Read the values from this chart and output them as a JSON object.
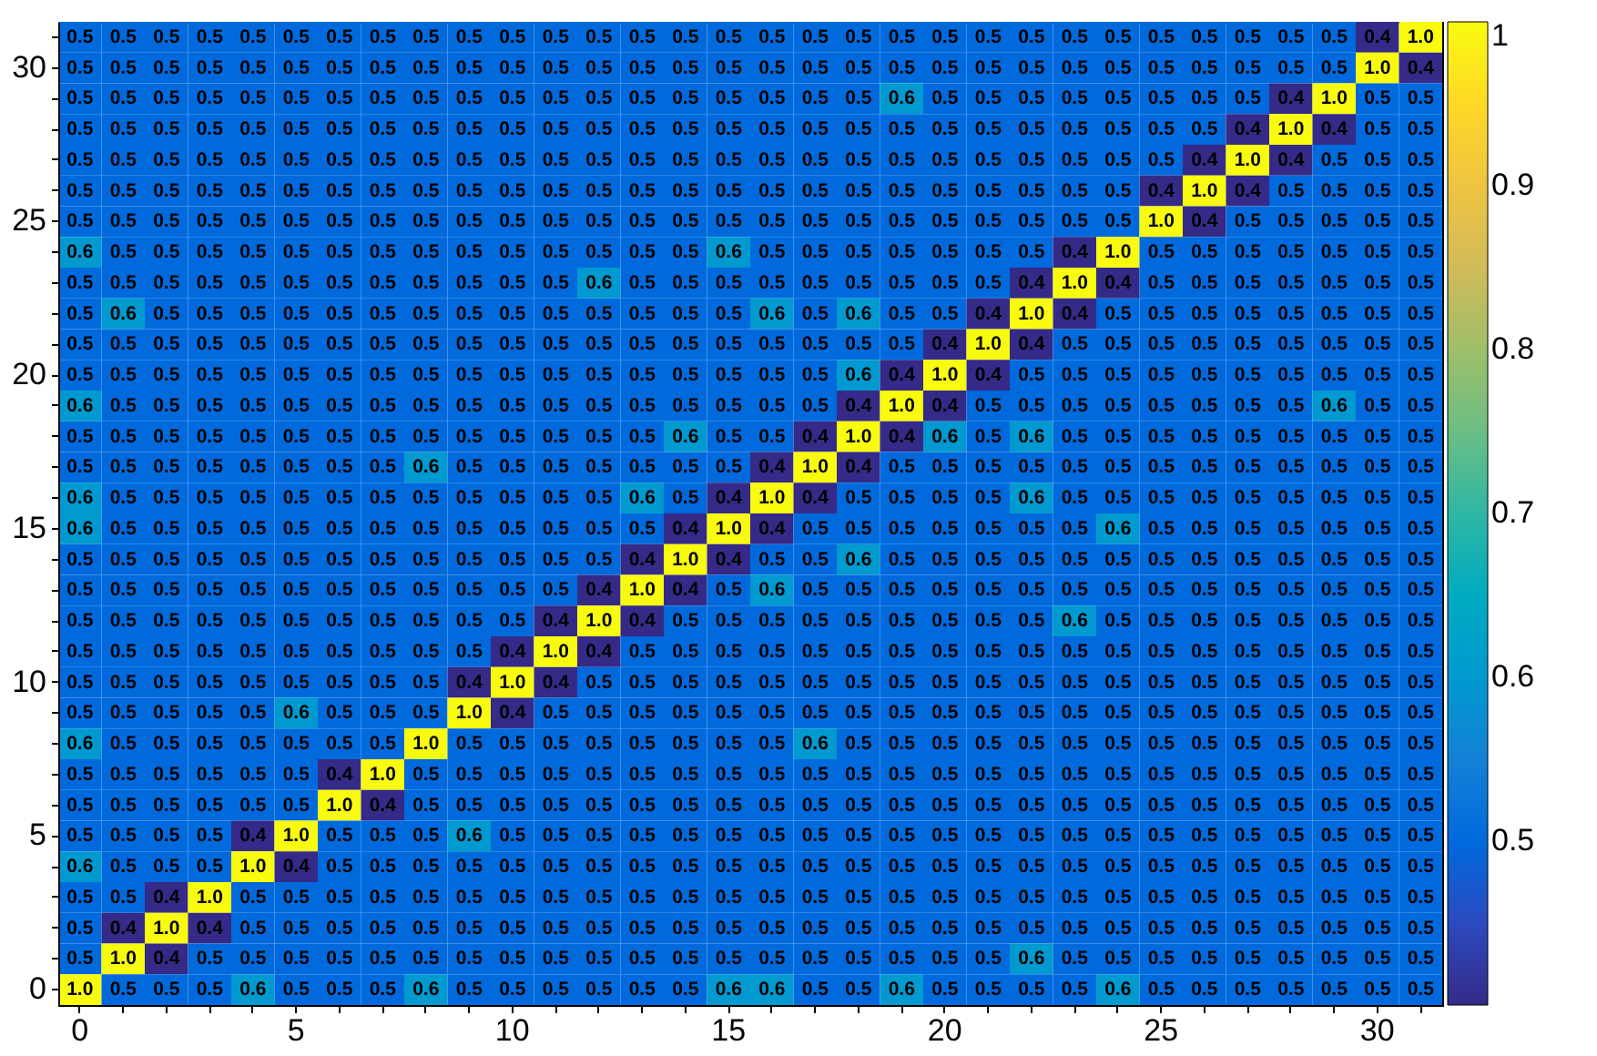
{
  "chart_data": {
    "type": "heatmap",
    "categories": [
      "0",
      null,
      null,
      null,
      null,
      "5",
      null,
      null,
      null,
      null,
      "10",
      null,
      null,
      null,
      null,
      "15",
      null,
      null,
      null,
      null,
      "20",
      null,
      null,
      null,
      null,
      "25",
      null,
      null,
      null,
      null,
      "30",
      null
    ],
    "y_categories": [
      null,
      "30",
      null,
      null,
      null,
      null,
      "25",
      null,
      null,
      null,
      null,
      "20",
      null,
      null,
      null,
      null,
      "15",
      null,
      null,
      null,
      null,
      "10",
      null,
      null,
      null,
      null,
      "5",
      null,
      null,
      null,
      null,
      "0"
    ],
    "cells": [
      [
        0.5,
        0.5,
        0.5,
        0.5,
        0.5,
        0.5,
        0.5,
        0.5,
        0.5,
        0.5,
        0.5,
        0.5,
        0.5,
        0.5,
        0.5,
        0.5,
        0.5,
        0.5,
        0.5,
        0.5,
        0.5,
        0.5,
        0.5,
        0.5,
        0.5,
        0.5,
        0.5,
        0.5,
        0.5,
        0.5,
        0.4,
        1.0
      ],
      [
        0.5,
        0.5,
        0.5,
        0.5,
        0.5,
        0.5,
        0.5,
        0.5,
        0.5,
        0.5,
        0.5,
        0.5,
        0.5,
        0.5,
        0.5,
        0.5,
        0.5,
        0.5,
        0.5,
        0.5,
        0.5,
        0.5,
        0.5,
        0.5,
        0.5,
        0.5,
        0.5,
        0.5,
        0.5,
        0.5,
        1.0,
        0.4
      ],
      [
        0.5,
        0.5,
        0.5,
        0.5,
        0.5,
        0.5,
        0.5,
        0.5,
        0.5,
        0.5,
        0.5,
        0.5,
        0.5,
        0.5,
        0.5,
        0.5,
        0.5,
        0.5,
        0.5,
        0.6,
        0.5,
        0.5,
        0.5,
        0.5,
        0.5,
        0.5,
        0.5,
        0.5,
        0.4,
        1.0,
        0.5,
        0.5
      ],
      [
        0.5,
        0.5,
        0.5,
        0.5,
        0.5,
        0.5,
        0.5,
        0.5,
        0.5,
        0.5,
        0.5,
        0.5,
        0.5,
        0.5,
        0.5,
        0.5,
        0.5,
        0.5,
        0.5,
        0.5,
        0.5,
        0.5,
        0.5,
        0.5,
        0.5,
        0.5,
        0.5,
        0.4,
        1.0,
        0.4,
        0.5,
        0.5
      ],
      [
        0.5,
        0.5,
        0.5,
        0.5,
        0.5,
        0.5,
        0.5,
        0.5,
        0.5,
        0.5,
        0.5,
        0.5,
        0.5,
        0.5,
        0.5,
        0.5,
        0.5,
        0.5,
        0.5,
        0.5,
        0.5,
        0.5,
        0.5,
        0.5,
        0.5,
        0.5,
        0.4,
        1.0,
        0.4,
        0.5,
        0.5,
        0.5
      ],
      [
        0.5,
        0.5,
        0.5,
        0.5,
        0.5,
        0.5,
        0.5,
        0.5,
        0.5,
        0.5,
        0.5,
        0.5,
        0.5,
        0.5,
        0.5,
        0.5,
        0.5,
        0.5,
        0.5,
        0.5,
        0.5,
        0.5,
        0.5,
        0.5,
        0.5,
        0.4,
        1.0,
        0.4,
        0.5,
        0.5,
        0.5,
        0.5
      ],
      [
        0.5,
        0.5,
        0.5,
        0.5,
        0.5,
        0.5,
        0.5,
        0.5,
        0.5,
        0.5,
        0.5,
        0.5,
        0.5,
        0.5,
        0.5,
        0.5,
        0.5,
        0.5,
        0.5,
        0.5,
        0.5,
        0.5,
        0.5,
        0.5,
        0.5,
        1.0,
        0.4,
        0.5,
        0.5,
        0.5,
        0.5,
        0.5
      ],
      [
        0.6,
        0.5,
        0.5,
        0.5,
        0.5,
        0.5,
        0.5,
        0.5,
        0.5,
        0.5,
        0.5,
        0.5,
        0.5,
        0.5,
        0.5,
        0.6,
        0.5,
        0.5,
        0.5,
        0.5,
        0.5,
        0.5,
        0.5,
        0.4,
        1.0,
        0.5,
        0.5,
        0.5,
        0.5,
        0.5,
        0.5,
        0.5
      ],
      [
        0.5,
        0.5,
        0.5,
        0.5,
        0.5,
        0.5,
        0.5,
        0.5,
        0.5,
        0.5,
        0.5,
        0.5,
        0.6,
        0.5,
        0.5,
        0.5,
        0.5,
        0.5,
        0.5,
        0.5,
        0.5,
        0.5,
        0.4,
        1.0,
        0.4,
        0.5,
        0.5,
        0.5,
        0.5,
        0.5,
        0.5,
        0.5
      ],
      [
        0.5,
        0.6,
        0.5,
        0.5,
        0.5,
        0.5,
        0.5,
        0.5,
        0.5,
        0.5,
        0.5,
        0.5,
        0.5,
        0.5,
        0.5,
        0.5,
        0.6,
        0.5,
        0.6,
        0.5,
        0.5,
        0.4,
        1.0,
        0.4,
        0.5,
        0.5,
        0.5,
        0.5,
        0.5,
        0.5,
        0.5,
        0.5
      ],
      [
        0.5,
        0.5,
        0.5,
        0.5,
        0.5,
        0.5,
        0.5,
        0.5,
        0.5,
        0.5,
        0.5,
        0.5,
        0.5,
        0.5,
        0.5,
        0.5,
        0.5,
        0.5,
        0.5,
        0.5,
        0.4,
        1.0,
        0.4,
        0.5,
        0.5,
        0.5,
        0.5,
        0.5,
        0.5,
        0.5,
        0.5,
        0.5
      ],
      [
        0.5,
        0.5,
        0.5,
        0.5,
        0.5,
        0.5,
        0.5,
        0.5,
        0.5,
        0.5,
        0.5,
        0.5,
        0.5,
        0.5,
        0.5,
        0.5,
        0.5,
        0.5,
        0.6,
        0.4,
        1.0,
        0.4,
        0.5,
        0.5,
        0.5,
        0.5,
        0.5,
        0.5,
        0.5,
        0.5,
        0.5,
        0.5
      ],
      [
        0.6,
        0.5,
        0.5,
        0.5,
        0.5,
        0.5,
        0.5,
        0.5,
        0.5,
        0.5,
        0.5,
        0.5,
        0.5,
        0.5,
        0.5,
        0.5,
        0.5,
        0.5,
        0.4,
        1.0,
        0.4,
        0.5,
        0.5,
        0.5,
        0.5,
        0.5,
        0.5,
        0.5,
        0.5,
        0.6,
        0.5,
        0.5
      ],
      [
        0.5,
        0.5,
        0.5,
        0.5,
        0.5,
        0.5,
        0.5,
        0.5,
        0.5,
        0.5,
        0.5,
        0.5,
        0.5,
        0.5,
        0.6,
        0.5,
        0.5,
        0.4,
        1.0,
        0.4,
        0.6,
        0.5,
        0.6,
        0.5,
        0.5,
        0.5,
        0.5,
        0.5,
        0.5,
        0.5,
        0.5,
        0.5
      ],
      [
        0.5,
        0.5,
        0.5,
        0.5,
        0.5,
        0.5,
        0.5,
        0.5,
        0.6,
        0.5,
        0.5,
        0.5,
        0.5,
        0.5,
        0.5,
        0.5,
        0.4,
        1.0,
        0.4,
        0.5,
        0.5,
        0.5,
        0.5,
        0.5,
        0.5,
        0.5,
        0.5,
        0.5,
        0.5,
        0.5,
        0.5,
        0.5
      ],
      [
        0.6,
        0.5,
        0.5,
        0.5,
        0.5,
        0.5,
        0.5,
        0.5,
        0.5,
        0.5,
        0.5,
        0.5,
        0.5,
        0.6,
        0.5,
        0.4,
        1.0,
        0.4,
        0.5,
        0.5,
        0.5,
        0.5,
        0.6,
        0.5,
        0.5,
        0.5,
        0.5,
        0.5,
        0.5,
        0.5,
        0.5,
        0.5
      ],
      [
        0.6,
        0.5,
        0.5,
        0.5,
        0.5,
        0.5,
        0.5,
        0.5,
        0.5,
        0.5,
        0.5,
        0.5,
        0.5,
        0.5,
        0.4,
        1.0,
        0.4,
        0.5,
        0.5,
        0.5,
        0.5,
        0.5,
        0.5,
        0.5,
        0.6,
        0.5,
        0.5,
        0.5,
        0.5,
        0.5,
        0.5,
        0.5
      ],
      [
        0.5,
        0.5,
        0.5,
        0.5,
        0.5,
        0.5,
        0.5,
        0.5,
        0.5,
        0.5,
        0.5,
        0.5,
        0.5,
        0.4,
        1.0,
        0.4,
        0.5,
        0.5,
        0.6,
        0.5,
        0.5,
        0.5,
        0.5,
        0.5,
        0.5,
        0.5,
        0.5,
        0.5,
        0.5,
        0.5,
        0.5,
        0.5
      ],
      [
        0.5,
        0.5,
        0.5,
        0.5,
        0.5,
        0.5,
        0.5,
        0.5,
        0.5,
        0.5,
        0.5,
        0.5,
        0.4,
        1.0,
        0.4,
        0.5,
        0.6,
        0.5,
        0.5,
        0.5,
        0.5,
        0.5,
        0.5,
        0.5,
        0.5,
        0.5,
        0.5,
        0.5,
        0.5,
        0.5,
        0.5,
        0.5
      ],
      [
        0.5,
        0.5,
        0.5,
        0.5,
        0.5,
        0.5,
        0.5,
        0.5,
        0.5,
        0.5,
        0.5,
        0.4,
        1.0,
        0.4,
        0.5,
        0.5,
        0.5,
        0.5,
        0.5,
        0.5,
        0.5,
        0.5,
        0.5,
        0.6,
        0.5,
        0.5,
        0.5,
        0.5,
        0.5,
        0.5,
        0.5,
        0.5
      ],
      [
        0.5,
        0.5,
        0.5,
        0.5,
        0.5,
        0.5,
        0.5,
        0.5,
        0.5,
        0.5,
        0.4,
        1.0,
        0.4,
        0.5,
        0.5,
        0.5,
        0.5,
        0.5,
        0.5,
        0.5,
        0.5,
        0.5,
        0.5,
        0.5,
        0.5,
        0.5,
        0.5,
        0.5,
        0.5,
        0.5,
        0.5,
        0.5
      ],
      [
        0.5,
        0.5,
        0.5,
        0.5,
        0.5,
        0.5,
        0.5,
        0.5,
        0.5,
        0.4,
        1.0,
        0.4,
        0.5,
        0.5,
        0.5,
        0.5,
        0.5,
        0.5,
        0.5,
        0.5,
        0.5,
        0.5,
        0.5,
        0.5,
        0.5,
        0.5,
        0.5,
        0.5,
        0.5,
        0.5,
        0.5,
        0.5
      ],
      [
        0.5,
        0.5,
        0.5,
        0.5,
        0.5,
        0.6,
        0.5,
        0.5,
        0.5,
        1.0,
        0.4,
        0.5,
        0.5,
        0.5,
        0.5,
        0.5,
        0.5,
        0.5,
        0.5,
        0.5,
        0.5,
        0.5,
        0.5,
        0.5,
        0.5,
        0.5,
        0.5,
        0.5,
        0.5,
        0.5,
        0.5,
        0.5
      ],
      [
        0.6,
        0.5,
        0.5,
        0.5,
        0.5,
        0.5,
        0.5,
        0.5,
        1.0,
        0.5,
        0.5,
        0.5,
        0.5,
        0.5,
        0.5,
        0.5,
        0.5,
        0.6,
        0.5,
        0.5,
        0.5,
        0.5,
        0.5,
        0.5,
        0.5,
        0.5,
        0.5,
        0.5,
        0.5,
        0.5,
        0.5,
        0.5
      ],
      [
        0.5,
        0.5,
        0.5,
        0.5,
        0.5,
        0.5,
        0.4,
        1.0,
        0.5,
        0.5,
        0.5,
        0.5,
        0.5,
        0.5,
        0.5,
        0.5,
        0.5,
        0.5,
        0.5,
        0.5,
        0.5,
        0.5,
        0.5,
        0.5,
        0.5,
        0.5,
        0.5,
        0.5,
        0.5,
        0.5,
        0.5,
        0.5
      ],
      [
        0.5,
        0.5,
        0.5,
        0.5,
        0.5,
        0.5,
        1.0,
        0.4,
        0.5,
        0.5,
        0.5,
        0.5,
        0.5,
        0.5,
        0.5,
        0.5,
        0.5,
        0.5,
        0.5,
        0.5,
        0.5,
        0.5,
        0.5,
        0.5,
        0.5,
        0.5,
        0.5,
        0.5,
        0.5,
        0.5,
        0.5,
        0.5
      ],
      [
        0.5,
        0.5,
        0.5,
        0.5,
        0.4,
        1.0,
        0.5,
        0.5,
        0.5,
        0.6,
        0.5,
        0.5,
        0.5,
        0.5,
        0.5,
        0.5,
        0.5,
        0.5,
        0.5,
        0.5,
        0.5,
        0.5,
        0.5,
        0.5,
        0.5,
        0.5,
        0.5,
        0.5,
        0.5,
        0.5,
        0.5,
        0.5
      ],
      [
        0.6,
        0.5,
        0.5,
        0.5,
        1.0,
        0.4,
        0.5,
        0.5,
        0.5,
        0.5,
        0.5,
        0.5,
        0.5,
        0.5,
        0.5,
        0.5,
        0.5,
        0.5,
        0.5,
        0.5,
        0.5,
        0.5,
        0.5,
        0.5,
        0.5,
        0.5,
        0.5,
        0.5,
        0.5,
        0.5,
        0.5,
        0.5
      ],
      [
        0.5,
        0.5,
        0.4,
        1.0,
        0.5,
        0.5,
        0.5,
        0.5,
        0.5,
        0.5,
        0.5,
        0.5,
        0.5,
        0.5,
        0.5,
        0.5,
        0.5,
        0.5,
        0.5,
        0.5,
        0.5,
        0.5,
        0.5,
        0.5,
        0.5,
        0.5,
        0.5,
        0.5,
        0.5,
        0.5,
        0.5,
        0.5
      ],
      [
        0.5,
        0.4,
        1.0,
        0.4,
        0.5,
        0.5,
        0.5,
        0.5,
        0.5,
        0.5,
        0.5,
        0.5,
        0.5,
        0.5,
        0.5,
        0.5,
        0.5,
        0.5,
        0.5,
        0.5,
        0.5,
        0.5,
        0.5,
        0.5,
        0.5,
        0.5,
        0.5,
        0.5,
        0.5,
        0.5,
        0.5,
        0.5
      ],
      [
        0.5,
        1.0,
        0.4,
        0.5,
        0.5,
        0.5,
        0.5,
        0.5,
        0.5,
        0.5,
        0.5,
        0.5,
        0.5,
        0.5,
        0.5,
        0.5,
        0.5,
        0.5,
        0.5,
        0.5,
        0.5,
        0.5,
        0.6,
        0.5,
        0.5,
        0.5,
        0.5,
        0.5,
        0.5,
        0.5,
        0.5,
        0.5
      ],
      [
        1.0,
        0.5,
        0.5,
        0.5,
        0.6,
        0.5,
        0.5,
        0.5,
        0.6,
        0.5,
        0.5,
        0.5,
        0.5,
        0.5,
        0.5,
        0.6,
        0.6,
        0.5,
        0.5,
        0.6,
        0.5,
        0.5,
        0.5,
        0.5,
        0.6,
        0.5,
        0.5,
        0.5,
        0.5,
        0.5,
        0.5,
        0.5
      ]
    ],
    "cell_labels": [
      [
        "0.5",
        "0.5",
        "0.5",
        "0.5",
        "0.5",
        "0.5",
        "0.5",
        "0.5",
        "0.5",
        "0.5",
        "0.5",
        "0.5",
        "0.5",
        "0.5",
        "0.5",
        "0.5",
        "0.5",
        "0.5",
        "0.5",
        "0.5",
        "0.5",
        "0.5",
        "0.5",
        "0.5",
        "0.5",
        "0.5",
        "0.5",
        "0.5",
        "0.5",
        "0.5",
        "0.4",
        "1.0"
      ],
      [
        "0.5",
        "0.5",
        "0.5",
        "0.5",
        "0.5",
        "0.5",
        "0.5",
        "0.5",
        "0.5",
        "0.5",
        "0.5",
        "0.5",
        "0.5",
        "0.5",
        "0.5",
        "0.5",
        "0.5",
        "0.5",
        "0.5",
        "0.5",
        "0.5",
        "0.5",
        "0.5",
        "0.5",
        "0.5",
        "0.5",
        "0.5",
        "0.5",
        "0.5",
        "0.5",
        "1.0",
        "0.4"
      ],
      [
        "0.5",
        "0.5",
        "0.5",
        "0.5",
        "0.5",
        "0.5",
        "0.5",
        "0.5",
        "0.5",
        "0.5",
        "0.5",
        "0.5",
        "0.5",
        "0.5",
        "0.5",
        "0.5",
        "0.5",
        "0.5",
        "0.5",
        "0.6",
        "0.5",
        "0.5",
        "0.5",
        "0.5",
        "0.5",
        "0.5",
        "0.5",
        "0.5",
        "0.4",
        "1.0",
        "0.5",
        "0.5"
      ],
      [
        "0.5",
        "0.5",
        "0.5",
        "0.5",
        "0.5",
        "0.5",
        "0.5",
        "0.5",
        "0.5",
        "0.5",
        "0.5",
        "0.5",
        "0.5",
        "0.5",
        "0.5",
        "0.5",
        "0.5",
        "0.5",
        "0.5",
        "0.5",
        "0.5",
        "0.5",
        "0.5",
        "0.5",
        "0.5",
        "0.5",
        "0.5",
        "0.4",
        "1.0",
        "0.4",
        "0.5",
        "0.5"
      ],
      [
        "0.5",
        "0.5",
        "0.5",
        "0.5",
        "0.5",
        "0.5",
        "0.5",
        "0.5",
        "0.5",
        "0.5",
        "0.5",
        "0.5",
        "0.5",
        "0.5",
        "0.5",
        "0.5",
        "0.5",
        "0.5",
        "0.5",
        "0.5",
        "0.5",
        "0.5",
        "0.5",
        "0.5",
        "0.5",
        "0.5",
        "0.4",
        "1.0",
        "0.4",
        "0.5",
        "0.5",
        "0.5"
      ],
      [
        "0.5",
        "0.5",
        "0.5",
        "0.5",
        "0.5",
        "0.5",
        "0.5",
        "0.5",
        "0.5",
        "0.5",
        "0.5",
        "0.5",
        "0.5",
        "0.5",
        "0.5",
        "0.5",
        "0.5",
        "0.5",
        "0.5",
        "0.5",
        "0.5",
        "0.5",
        "0.5",
        "0.5",
        "0.5",
        "0.4",
        "1.0",
        "0.4",
        "0.5",
        "0.5",
        "0.5",
        "0.5"
      ],
      [
        "0.5",
        "0.5",
        "0.5",
        "0.5",
        "0.5",
        "0.5",
        "0.5",
        "0.5",
        "0.5",
        "0.5",
        "0.5",
        "0.5",
        "0.5",
        "0.5",
        "0.5",
        "0.5",
        "0.5",
        "0.5",
        "0.5",
        "0.5",
        "0.5",
        "0.5",
        "0.5",
        "0.5",
        "0.5",
        "1.0",
        "0.4",
        "0.5",
        "0.5",
        "0.5",
        "0.5",
        "0.5"
      ],
      [
        "0.6",
        "0.5",
        "0.5",
        "0.5",
        "0.5",
        "0.5",
        "0.5",
        "0.5",
        "0.5",
        "0.5",
        "0.5",
        "0.5",
        "0.5",
        "0.5",
        "0.5",
        "0.6",
        "0.5",
        "0.5",
        "0.5",
        "0.5",
        "0.5",
        "0.5",
        "0.5",
        "0.4",
        "1.0",
        "0.5",
        "0.5",
        "0.5",
        "0.5",
        "0.5",
        "0.5",
        "0.5"
      ],
      [
        "0.5",
        "0.5",
        "0.5",
        "0.5",
        "0.5",
        "0.5",
        "0.5",
        "0.5",
        "0.5",
        "0.5",
        "0.5",
        "0.5",
        "0.6",
        "0.5",
        "0.5",
        "0.5",
        "0.5",
        "0.5",
        "0.5",
        "0.5",
        "0.5",
        "0.5",
        "0.4",
        "1.0",
        "0.4",
        "0.5",
        "0.5",
        "0.5",
        "0.5",
        "0.5",
        "0.5",
        "0.5"
      ],
      [
        "0.5",
        "0.6",
        "0.5",
        "0.5",
        "0.5",
        "0.5",
        "0.5",
        "0.5",
        "0.5",
        "0.5",
        "0.5",
        "0.5",
        "0.5",
        "0.5",
        "0.5",
        "0.5",
        "0.6",
        "0.5",
        "0.6",
        "0.5",
        "0.5",
        "0.4",
        "1.0",
        "0.4",
        "0.5",
        "0.5",
        "0.5",
        "0.5",
        "0.5",
        "0.5",
        "0.5",
        "0.5"
      ],
      [
        "0.5",
        "0.5",
        "0.5",
        "0.5",
        "0.5",
        "0.5",
        "0.5",
        "0.5",
        "0.5",
        "0.5",
        "0.5",
        "0.5",
        "0.5",
        "0.5",
        "0.5",
        "0.5",
        "0.5",
        "0.5",
        "0.5",
        "0.5",
        "0.4",
        "1.0",
        "0.4",
        "0.5",
        "0.5",
        "0.5",
        "0.5",
        "0.5",
        "0.5",
        "0.5",
        "0.5",
        "0.5"
      ],
      [
        "0.5",
        "0.5",
        "0.5",
        "0.5",
        "0.5",
        "0.5",
        "0.5",
        "0.5",
        "0.5",
        "0.5",
        "0.5",
        "0.5",
        "0.5",
        "0.5",
        "0.5",
        "0.5",
        "0.5",
        "0.5",
        "0.6",
        "0.4",
        "1.0",
        "0.4",
        "0.5",
        "0.5",
        "0.5",
        "0.5",
        "0.5",
        "0.5",
        "0.5",
        "0.5",
        "0.5",
        "0.5"
      ],
      [
        "0.6",
        "0.5",
        "0.5",
        "0.5",
        "0.5",
        "0.5",
        "0.5",
        "0.5",
        "0.5",
        "0.5",
        "0.5",
        "0.5",
        "0.5",
        "0.5",
        "0.5",
        "0.5",
        "0.5",
        "0.5",
        "0.4",
        "1.0",
        "0.4",
        "0.5",
        "0.5",
        "0.5",
        "0.5",
        "0.5",
        "0.5",
        "0.5",
        "0.5",
        "0.6",
        "0.5",
        "0.5"
      ],
      [
        "0.5",
        "0.5",
        "0.5",
        "0.5",
        "0.5",
        "0.5",
        "0.5",
        "0.5",
        "0.5",
        "0.5",
        "0.5",
        "0.5",
        "0.5",
        "0.5",
        "0.6",
        "0.5",
        "0.5",
        "0.4",
        "1.0",
        "0.4",
        "0.6",
        "0.5",
        "0.6",
        "0.5",
        "0.5",
        "0.5",
        "0.5",
        "0.5",
        "0.5",
        "0.5",
        "0.5",
        "0.5"
      ],
      [
        "0.5",
        "0.5",
        "0.5",
        "0.5",
        "0.5",
        "0.5",
        "0.5",
        "0.5",
        "0.6",
        "0.5",
        "0.5",
        "0.5",
        "0.5",
        "0.5",
        "0.5",
        "0.5",
        "0.4",
        "1.0",
        "0.4",
        "0.5",
        "0.5",
        "0.5",
        "0.5",
        "0.5",
        "0.5",
        "0.5",
        "0.5",
        "0.5",
        "0.5",
        "0.5",
        "0.5",
        "0.5"
      ],
      [
        "0.6",
        "0.5",
        "0.5",
        "0.5",
        "0.5",
        "0.5",
        "0.5",
        "0.5",
        "0.5",
        "0.5",
        "0.5",
        "0.5",
        "0.5",
        "0.6",
        "0.5",
        "0.4",
        "1.0",
        "0.4",
        "0.5",
        "0.5",
        "0.5",
        "0.5",
        "0.6",
        "0.5",
        "0.5",
        "0.5",
        "0.5",
        "0.5",
        "0.5",
        "0.5",
        "0.5",
        "0.5"
      ],
      [
        "0.6",
        "0.5",
        "0.5",
        "0.5",
        "0.5",
        "0.5",
        "0.5",
        "0.5",
        "0.5",
        "0.5",
        "0.5",
        "0.5",
        "0.5",
        "0.5",
        "0.4",
        "1.0",
        "0.4",
        "0.5",
        "0.5",
        "0.5",
        "0.5",
        "0.5",
        "0.5",
        "0.5",
        "0.6",
        "0.5",
        "0.5",
        "0.5",
        "0.5",
        "0.5",
        "0.5",
        "0.5"
      ],
      [
        "0.5",
        "0.5",
        "0.5",
        "0.5",
        "0.5",
        "0.5",
        "0.5",
        "0.5",
        "0.5",
        "0.5",
        "0.5",
        "0.5",
        "0.5",
        "0.4",
        "1.0",
        "0.4",
        "0.5",
        "0.5",
        "0.6",
        "0.5",
        "0.5",
        "0.5",
        "0.5",
        "0.5",
        "0.5",
        "0.5",
        "0.5",
        "0.5",
        "0.5",
        "0.5",
        "0.5",
        "0.5"
      ],
      [
        "0.5",
        "0.5",
        "0.5",
        "0.5",
        "0.5",
        "0.5",
        "0.5",
        "0.5",
        "0.5",
        "0.5",
        "0.5",
        "0.5",
        "0.4",
        "1.0",
        "0.4",
        "0.5",
        "0.6",
        "0.5",
        "0.5",
        "0.5",
        "0.5",
        "0.5",
        "0.5",
        "0.5",
        "0.5",
        "0.5",
        "0.5",
        "0.5",
        "0.5",
        "0.5",
        "0.5",
        "0.5"
      ],
      [
        "0.5",
        "0.5",
        "0.5",
        "0.5",
        "0.5",
        "0.5",
        "0.5",
        "0.5",
        "0.5",
        "0.5",
        "0.5",
        "0.4",
        "1.0",
        "0.4",
        "0.5",
        "0.5",
        "0.5",
        "0.5",
        "0.5",
        "0.5",
        "0.5",
        "0.5",
        "0.5",
        "0.6",
        "0.5",
        "0.5",
        "0.5",
        "0.5",
        "0.5",
        "0.5",
        "0.5",
        "0.5"
      ],
      [
        "0.5",
        "0.5",
        "0.5",
        "0.5",
        "0.5",
        "0.5",
        "0.5",
        "0.5",
        "0.5",
        "0.5",
        "0.4",
        "1.0",
        "0.4",
        "0.5",
        "0.5",
        "0.5",
        "0.5",
        "0.5",
        "0.5",
        "0.5",
        "0.5",
        "0.5",
        "0.5",
        "0.5",
        "0.5",
        "0.5",
        "0.5",
        "0.5",
        "0.5",
        "0.5",
        "0.5",
        "0.5"
      ],
      [
        "0.5",
        "0.5",
        "0.5",
        "0.5",
        "0.5",
        "0.5",
        "0.5",
        "0.5",
        "0.5",
        "0.4",
        "1.0",
        "0.4",
        "0.5",
        "0.5",
        "0.5",
        "0.5",
        "0.5",
        "0.5",
        "0.5",
        "0.5",
        "0.5",
        "0.5",
        "0.5",
        "0.5",
        "0.5",
        "0.5",
        "0.5",
        "0.5",
        "0.5",
        "0.5",
        "0.5",
        "0.5"
      ],
      [
        "0.5",
        "0.5",
        "0.5",
        "0.5",
        "0.5",
        "0.6",
        "0.5",
        "0.5",
        "0.5",
        "1.0",
        "0.4",
        "0.5",
        "0.5",
        "0.5",
        "0.5",
        "0.5",
        "0.5",
        "0.5",
        "0.5",
        "0.5",
        "0.5",
        "0.5",
        "0.5",
        "0.5",
        "0.5",
        "0.5",
        "0.5",
        "0.5",
        "0.5",
        "0.5",
        "0.5",
        "0.5"
      ],
      [
        "0.6",
        "0.5",
        "0.5",
        "0.5",
        "0.5",
        "0.5",
        "0.5",
        "0.5",
        "1.0",
        "0.5",
        "0.5",
        "0.5",
        "0.5",
        "0.5",
        "0.5",
        "0.5",
        "0.5",
        "0.6",
        "0.5",
        "0.5",
        "0.5",
        "0.5",
        "0.5",
        "0.5",
        "0.5",
        "0.5",
        "0.5",
        "0.5",
        "0.5",
        "0.5",
        "0.5",
        "0.5"
      ],
      [
        "0.5",
        "0.5",
        "0.5",
        "0.5",
        "0.5",
        "0.5",
        "0.4",
        "1.0",
        "0.5",
        "0.5",
        "0.5",
        "0.5",
        "0.5",
        "0.5",
        "0.5",
        "0.5",
        "0.5",
        "0.5",
        "0.5",
        "0.5",
        "0.5",
        "0.5",
        "0.5",
        "0.5",
        "0.5",
        "0.5",
        "0.5",
        "0.5",
        "0.5",
        "0.5",
        "0.5",
        "0.5"
      ],
      [
        "0.5",
        "0.5",
        "0.5",
        "0.5",
        "0.5",
        "0.5",
        "1.0",
        "0.4",
        "0.5",
        "0.5",
        "0.5",
        "0.5",
        "0.5",
        "0.5",
        "0.5",
        "0.5",
        "0.5",
        "0.5",
        "0.5",
        "0.5",
        "0.5",
        "0.5",
        "0.5",
        "0.5",
        "0.5",
        "0.5",
        "0.5",
        "0.5",
        "0.5",
        "0.5",
        "0.5",
        "0.5"
      ],
      [
        "0.5",
        "0.5",
        "0.5",
        "0.5",
        "0.4",
        "1.0",
        "0.5",
        "0.5",
        "0.5",
        "0.6",
        "0.5",
        "0.5",
        "0.5",
        "0.5",
        "0.5",
        "0.5",
        "0.5",
        "0.5",
        "0.5",
        "0.5",
        "0.5",
        "0.5",
        "0.5",
        "0.5",
        "0.5",
        "0.5",
        "0.5",
        "0.5",
        "0.5",
        "0.5",
        "0.5",
        "0.5"
      ],
      [
        "0.6",
        "0.5",
        "0.5",
        "0.5",
        "1.0",
        "0.4",
        "0.5",
        "0.5",
        "0.5",
        "0.5",
        "0.5",
        "0.5",
        "0.5",
        "0.5",
        "0.5",
        "0.5",
        "0.5",
        "0.5",
        "0.5",
        "0.5",
        "0.5",
        "0.5",
        "0.5",
        "0.5",
        "0.5",
        "0.5",
        "0.5",
        "0.5",
        "0.5",
        "0.5",
        "0.5",
        "0.5"
      ],
      [
        "0.5",
        "0.5",
        "0.4",
        "1.0",
        "0.5",
        "0.5",
        "0.5",
        "0.5",
        "0.5",
        "0.5",
        "0.5",
        "0.5",
        "0.5",
        "0.5",
        "0.5",
        "0.5",
        "0.5",
        "0.5",
        "0.5",
        "0.5",
        "0.5",
        "0.5",
        "0.5",
        "0.5",
        "0.5",
        "0.5",
        "0.5",
        "0.5",
        "0.5",
        "0.5",
        "0.5",
        "0.5"
      ],
      [
        "0.5",
        "0.4",
        "1.0",
        "0.4",
        "0.5",
        "0.5",
        "0.5",
        "0.5",
        "0.5",
        "0.5",
        "0.5",
        "0.5",
        "0.5",
        "0.5",
        "0.5",
        "0.5",
        "0.5",
        "0.5",
        "0.5",
        "0.5",
        "0.5",
        "0.5",
        "0.5",
        "0.5",
        "0.5",
        "0.5",
        "0.5",
        "0.5",
        "0.5",
        "0.5",
        "0.5",
        "0.5"
      ],
      [
        "0.5",
        "1.0",
        "0.4",
        "0.5",
        "0.5",
        "0.5",
        "0.5",
        "0.5",
        "0.5",
        "0.5",
        "0.5",
        "0.5",
        "0.5",
        "0.5",
        "0.5",
        "0.5",
        "0.5",
        "0.5",
        "0.5",
        "0.5",
        "0.5",
        "0.5",
        "0.6",
        "0.5",
        "0.5",
        "0.5",
        "0.5",
        "0.5",
        "0.5",
        "0.5",
        "0.5",
        "0.5"
      ],
      [
        "1.0",
        "0.5",
        "0.5",
        "0.5",
        "0.6",
        "0.5",
        "0.5",
        "0.5",
        "0.6",
        "0.5",
        "0.5",
        "0.5",
        "0.5",
        "0.5",
        "0.5",
        "0.6",
        "0.6",
        "0.5",
        "0.5",
        "0.6",
        "0.5",
        "0.5",
        "0.5",
        "0.5",
        "0.6",
        "0.5",
        "0.5",
        "0.5",
        "0.5",
        "0.5",
        "0.5",
        "0.5"
      ]
    ],
    "data_labels": true,
    "clim": [
      0.4,
      1
    ],
    "cticks": [
      0.5,
      0.6,
      0.7,
      0.8,
      0.9,
      1
    ]
  }
}
